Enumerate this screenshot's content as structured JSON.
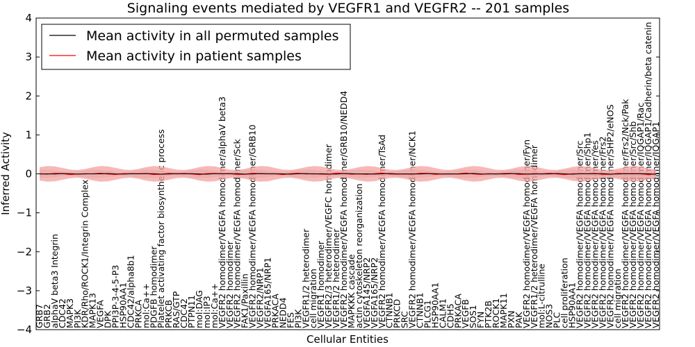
{
  "chart_data": {
    "type": "line",
    "title": "Signaling events mediated by VEGFR1 and VEGFR2 -- 201 samples",
    "xlabel": "Cellular Entities",
    "ylabel": "Inferred Activity",
    "ylim": [
      -4,
      4
    ],
    "yticks": [
      -4,
      -3,
      -2,
      -1,
      0,
      1,
      2,
      3,
      4
    ],
    "legend_position": "top-left",
    "colors": {
      "permuted": "#000000",
      "patient": "#ff0000",
      "patient_band": "#f4a0a0",
      "permuted_band": "#cccccc"
    },
    "series": [
      {
        "name": "Mean activity in all permuted samples",
        "color": "#000000",
        "mean": 0.0,
        "band": 0.08
      },
      {
        "name": "Mean activity in patient samples",
        "color": "#ff0000",
        "mean": 0.0,
        "band": 0.15
      }
    ],
    "entities": [
      "GRB7",
      "GRB2",
      "alphaV beta3 Integrin",
      "CDC42",
      "MAPK3",
      "PI3K",
      "KDR/Rho/ROCK1/Integrin Complex",
      "MAPK13",
      "VEGFA",
      "DPK",
      "PPI3P-3-4-5-P3",
      "HSP90AA1",
      "CDC42/alpha8b1",
      "PRKCA",
      "mol:Ca++",
      "PDGFB homodimer",
      "Platelet activating factor biosynthetic process",
      "PRKCB",
      "RAS/GTP",
      "CDC42",
      "PTPN11",
      "mol:DAG",
      "mol:IP3",
      "mol:Ca++",
      "VEGFR2 homodimer/VEGFA homodimer/alphaV beta3",
      "VEGFR2 homodimer",
      "VEGFR2 homodimer/VEGFA homodimer/Sck",
      "FAK1/Paxillin",
      "VEGFR2 homodimer/VEGFA homodimer/GRB10",
      "VEGFR2/NRP1",
      "VEGFA165/NRP1",
      "PRKACA",
      "NEDD4",
      "FES",
      "PI3K",
      "VEGFR1/2 heterodimer",
      "cell migration",
      "VEGFR1 homodimer",
      "VEGFR2/3 heterodimer/VEGFC homodimer",
      "VEGFR1/2 heterodimer",
      "VEGFR2 homodimer/VEGFA homodimer/GRB10/NEDD4",
      "MAPKKK cascade",
      "actin cytoskeleton reorganization",
      "VEGFA145/NRP2",
      "VEGFA165/NRP2",
      "VEGFR2 homodimer/VEGFA homodimer/TsAd",
      "CTNNB1",
      "PRKCD",
      "SRC",
      "VEGFR2 homodimer/VEGFA homodimer/NCK1",
      "CTNNB1",
      "PLCG1",
      "HSP90AA1",
      "CALM1",
      "CDH5",
      "PRKACA",
      "VEGFB",
      "SOS1",
      "FYN",
      "PTK2B",
      "ROCK1",
      "MAPK11",
      "PXN",
      "PAK",
      "VEGFR2 homodimer/VEGFA homodimer/Fyn",
      "VEGFR1/2 heterodimer/VEGFA homodimer",
      "mol:L-citrulline",
      "NOS3",
      "PLC",
      "cell proliferation",
      "HSP90AA1",
      "VEGFR2 homodimer/VEGFA homodimer/Src",
      "VEGFR2 homodimer/VEGFA homodimer/Shp1",
      "VEGFR2 homodimer/VEGFA homodimer/Yes",
      "VEGFR2 homodimer/VEGFA homodimer/Frs2",
      "VEGFR2 homodimer/VEGFA homodimer/SHP2/eNOS",
      "cell migration",
      "VEGFR2 homodimer/VEGFA homodimer/Frs2/Nck/Pak",
      "VEGFR2 homodimer/VEGFA homodimer/Src/Shb",
      "VEGFR2 homodimer/VEGFA homodimer/IQGAP1/Rac",
      "VEGFR2 homodimer/VEGFA homodimer/IQGAP1/Cadherin/beta catenin",
      "VEGFR2 homodimer/VEGFA homodimer/IQGAP1"
    ]
  }
}
